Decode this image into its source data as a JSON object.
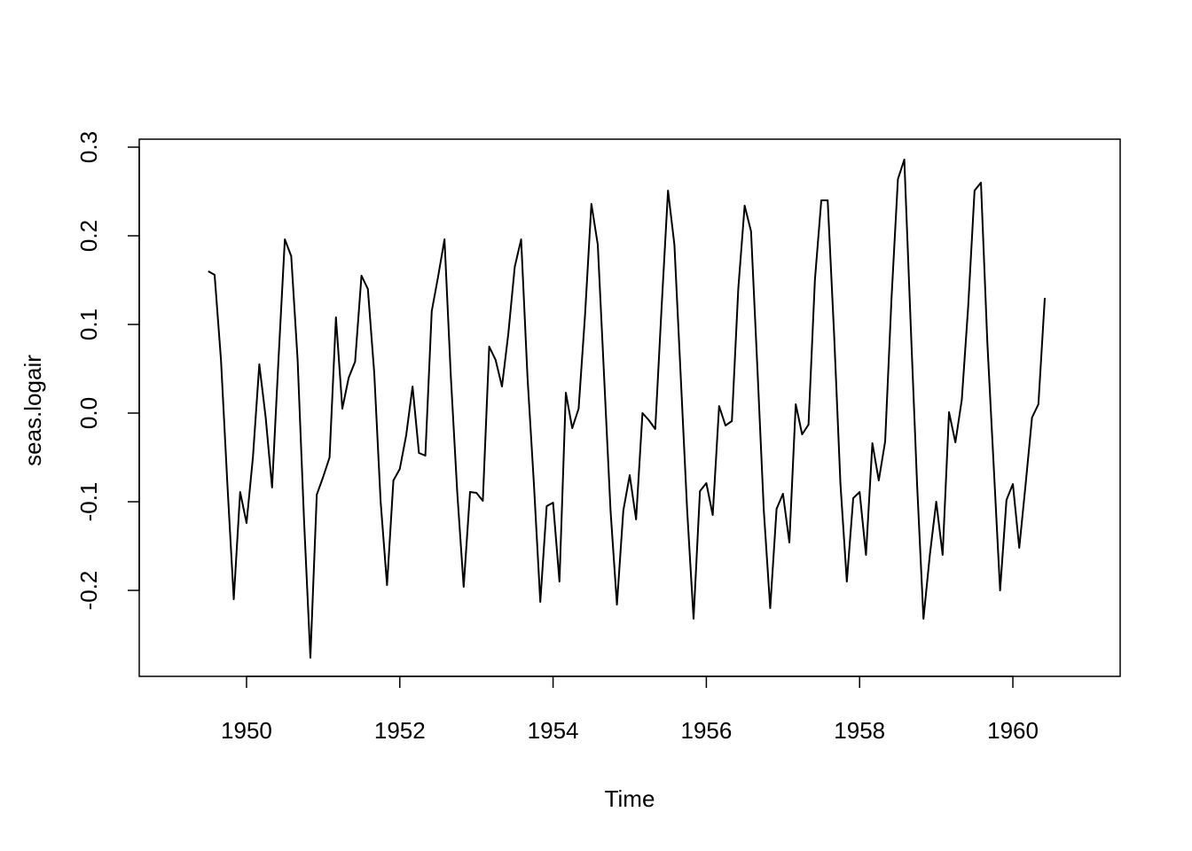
{
  "chart_data": {
    "type": "line",
    "title": "",
    "xlabel": "Time",
    "ylabel": "seas.logair",
    "xlim": [
      1948.6,
      1961.4
    ],
    "ylim": [
      -0.297,
      0.309
    ],
    "x_ticks": [
      1950,
      1952,
      1954,
      1956,
      1958,
      1960
    ],
    "x_tick_labels": [
      "1950",
      "1952",
      "1954",
      "1956",
      "1958",
      "1960"
    ],
    "y_ticks": [
      -0.2,
      -0.1,
      0.0,
      0.1,
      0.2,
      0.3
    ],
    "y_tick_labels": [
      "-0.2",
      "-0.1",
      "0.0",
      "0.1",
      "0.2",
      "0.3"
    ],
    "grid": false,
    "line_color": "#000000",
    "series": [
      {
        "x_start": 1949.5,
        "x_step": 0.0833333,
        "values": [
          0.16,
          0.156,
          0.06,
          -0.08,
          -0.21,
          -0.089,
          -0.124,
          -0.05,
          0.055,
          -0.005,
          -0.084,
          0.06,
          0.196,
          0.177,
          0.06,
          -0.12,
          -0.276,
          -0.092,
          -0.072,
          -0.05,
          0.108,
          0.005,
          0.04,
          0.058,
          0.155,
          0.14,
          0.045,
          -0.1,
          -0.194,
          -0.076,
          -0.063,
          -0.025,
          0.03,
          -0.045,
          -0.048,
          0.115,
          0.154,
          0.196,
          0.04,
          -0.09,
          -0.196,
          -0.089,
          -0.09,
          -0.099,
          0.075,
          0.06,
          0.03,
          0.09,
          0.165,
          0.196,
          0.04,
          -0.08,
          -0.213,
          -0.105,
          -0.101,
          -0.19,
          0.023,
          -0.017,
          0.005,
          0.11,
          0.236,
          0.19,
          0.04,
          -0.11,
          -0.216,
          -0.11,
          -0.07,
          -0.12,
          0.0,
          -0.008,
          -0.018,
          0.12,
          0.251,
          0.19,
          0.04,
          -0.11,
          -0.232,
          -0.088,
          -0.079,
          -0.115,
          0.008,
          -0.014,
          -0.009,
          0.14,
          0.234,
          0.205,
          0.05,
          -0.11,
          -0.22,
          -0.108,
          -0.091,
          -0.146,
          0.01,
          -0.024,
          -0.013,
          0.15,
          0.24,
          0.24,
          0.09,
          -0.08,
          -0.19,
          -0.096,
          -0.089,
          -0.16,
          -0.034,
          -0.076,
          -0.032,
          0.13,
          0.264,
          0.286,
          0.1,
          -0.08,
          -0.232,
          -0.16,
          -0.1,
          -0.16,
          0.001,
          -0.033,
          0.015,
          0.12,
          0.251,
          0.26,
          0.08,
          -0.06,
          -0.2,
          -0.098,
          -0.08,
          -0.152,
          -0.08,
          -0.005,
          0.01,
          0.13
        ]
      }
    ]
  }
}
